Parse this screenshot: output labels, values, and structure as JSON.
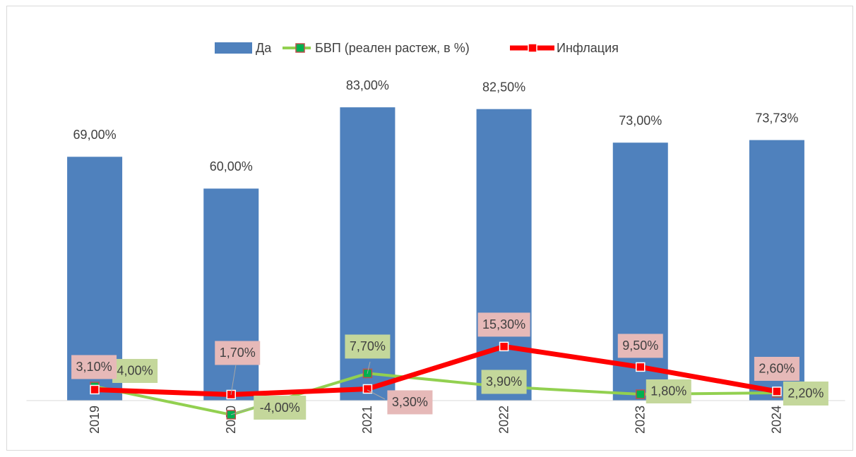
{
  "chart_data": {
    "type": "bar",
    "categories": [
      "2019",
      "2020",
      "2021",
      "2022",
      "2023",
      "2024"
    ],
    "ylim": [
      -10,
      90
    ],
    "series": [
      {
        "name": "Да",
        "type": "bar",
        "color": "#4f81bd",
        "values": [
          69,
          60,
          83,
          82.5,
          73,
          73.73
        ],
        "value_labels": [
          "69,00%",
          "60,00%",
          "83,00%",
          "82,50%",
          "73,00%",
          "73,73%"
        ]
      },
      {
        "name": "БВП (реален растеж, в %)",
        "type": "line",
        "color": "#92d050",
        "marker_color": "#00b050",
        "label_color": "#c4d79b",
        "values": [
          4.0,
          -4.0,
          7.7,
          3.9,
          1.8,
          2.2
        ],
        "value_labels": [
          "4,00%",
          "-4,00%",
          "7,70%",
          "3,90%",
          "1,80%",
          "2,20%"
        ]
      },
      {
        "name": "Инфлация",
        "type": "line",
        "color": "#ff0000",
        "marker_color": "#ff0000",
        "label_color": "#e6b9b8",
        "values": [
          3.1,
          1.7,
          3.3,
          15.3,
          9.5,
          2.6
        ],
        "value_labels": [
          "3,10%",
          "1,70%",
          "3,30%",
          "15,30%",
          "9,50%",
          "2,60%"
        ]
      }
    ],
    "legend": "top"
  }
}
